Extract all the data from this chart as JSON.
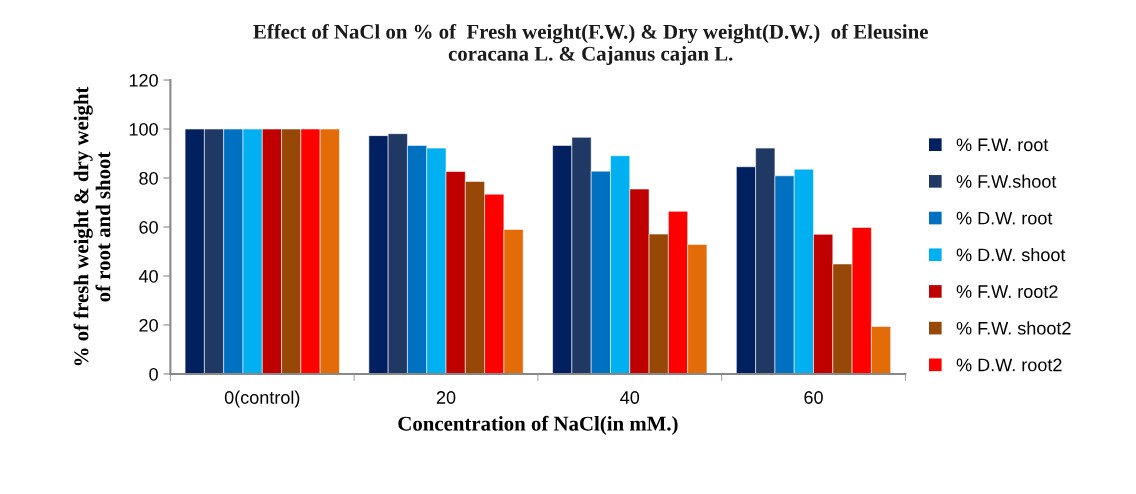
{
  "chart_data": {
    "type": "bar",
    "title": "Effect of NaCl on % of  Fresh weight(F.W.) & Dry weight(D.W.)  of Eleusine\ncoracana L. & Cajanus cajan L.",
    "xlabel": "Concentration of NaCl(in mM.)",
    "ylabel": "% of fresh weight & dry weight\nof root and shoot",
    "categories": [
      "0(control)",
      "20",
      "40",
      "60"
    ],
    "series": [
      {
        "name": "% F.W. root",
        "color": "#002060",
        "values": [
          100,
          97.3,
          93.3,
          84.6
        ]
      },
      {
        "name": "% F.W.shoot",
        "color": "#1f3864",
        "values": [
          100,
          98.1,
          96.6,
          92.2
        ]
      },
      {
        "name": "% D.W. root",
        "color": "#0070c0",
        "values": [
          100,
          93.3,
          82.8,
          80.9
        ]
      },
      {
        "name": "% D.W. shoot",
        "color": "#00b0f0",
        "values": [
          100,
          92.2,
          89.1,
          83.6
        ]
      },
      {
        "name": "% F.W. root2",
        "color": "#c00000",
        "values": [
          100,
          82.7,
          75.5,
          57.0
        ]
      },
      {
        "name": "% F.W. shoot2",
        "color": "#974706",
        "values": [
          100,
          78.6,
          57.1,
          44.9
        ]
      },
      {
        "name": "% D.W. root2",
        "color": "#ff0000",
        "values": [
          100,
          73.4,
          66.4,
          59.8
        ]
      },
      {
        "color": "#e36c09",
        "values": [
          100,
          59.0,
          52.9,
          19.4
        ]
      }
    ],
    "ylim": [
      0,
      120
    ],
    "yticks": [
      0,
      20,
      40,
      60,
      80,
      100,
      120
    ],
    "grid": false,
    "legend": "right"
  }
}
